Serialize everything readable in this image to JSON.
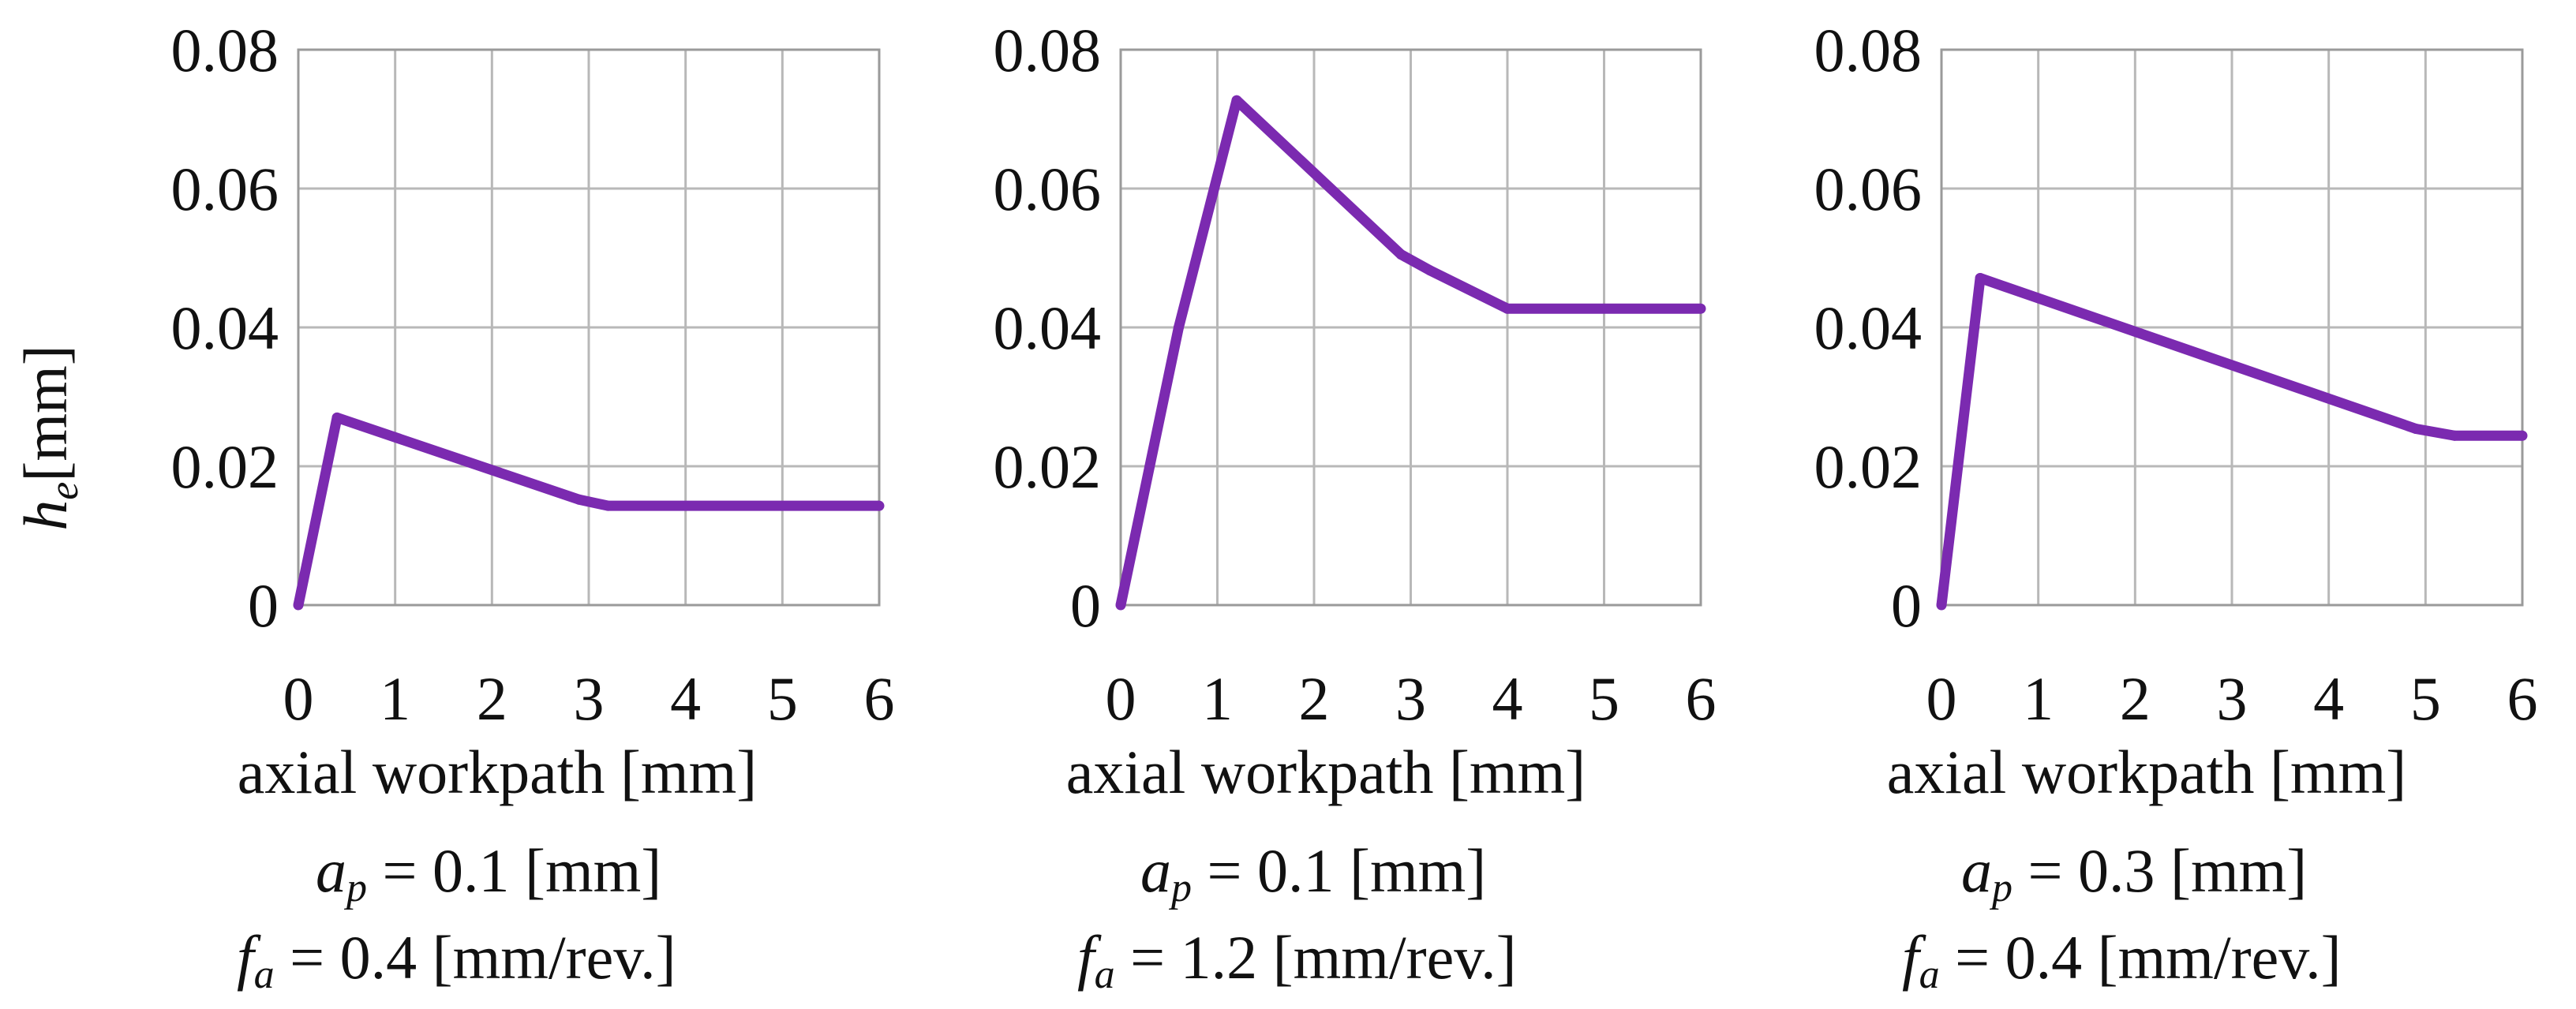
{
  "ylabel": {
    "symbol": "h",
    "subscript": "e",
    "unit": "[mm]"
  },
  "chart_data": [
    {
      "type": "line",
      "xlabel": "axial workpath [mm]",
      "xlim": [
        0,
        6
      ],
      "ylim": [
        0,
        0.08
      ],
      "xticks": [
        "0",
        "1",
        "2",
        "3",
        "4",
        "5",
        "6"
      ],
      "yticks": [
        "0",
        "0.02",
        "0.04",
        "0.06",
        "0.08"
      ],
      "grid": true,
      "color": "#7b2ab0",
      "x": [
        0,
        0.4,
        2.9,
        3.2,
        6
      ],
      "y": [
        0,
        0.027,
        0.0152,
        0.0143,
        0.0143
      ],
      "params": {
        "ap": {
          "symbol": "a",
          "sub": "p",
          "text": " = 0.1 [mm]"
        },
        "fa": {
          "symbol": "f",
          "sub": "a",
          "text": " = 0.4 [mm/rev.]"
        }
      }
    },
    {
      "type": "line",
      "xlabel": "axial workpath [mm]",
      "xlim": [
        0,
        6
      ],
      "ylim": [
        0,
        0.08
      ],
      "xticks": [
        "0",
        "1",
        "2",
        "3",
        "4",
        "5",
        "6"
      ],
      "yticks": [
        "0",
        "0.02",
        "0.04",
        "0.06",
        "0.08"
      ],
      "grid": true,
      "color": "#7b2ab0",
      "x": [
        0,
        0.6,
        1.2,
        2.9,
        3.2,
        4,
        6
      ],
      "y": [
        0,
        0.04,
        0.0727,
        0.0505,
        0.0482,
        0.0427,
        0.0427
      ],
      "params": {
        "ap": {
          "symbol": "a",
          "sub": "p",
          "text": " = 0.1 [mm]"
        },
        "fa": {
          "symbol": "f",
          "sub": "a",
          "text": " = 1.2 [mm/rev.]"
        }
      }
    },
    {
      "type": "line",
      "xlabel": "axial workpath [mm]",
      "xlim": [
        0,
        6
      ],
      "ylim": [
        0,
        0.08
      ],
      "xticks": [
        "0",
        "1",
        "2",
        "3",
        "4",
        "5",
        "6"
      ],
      "yticks": [
        "0",
        "0.02",
        "0.04",
        "0.06",
        "0.08"
      ],
      "grid": true,
      "color": "#7b2ab0",
      "x": [
        0,
        0.4,
        4.9,
        5.3,
        6
      ],
      "y": [
        0,
        0.0471,
        0.0254,
        0.0244,
        0.0244
      ],
      "params": {
        "ap": {
          "symbol": "a",
          "sub": "p",
          "text": " = 0.3 [mm]"
        },
        "fa": {
          "symbol": "f",
          "sub": "a",
          "text": " = 0.4 [mm/rev.]"
        }
      }
    }
  ]
}
